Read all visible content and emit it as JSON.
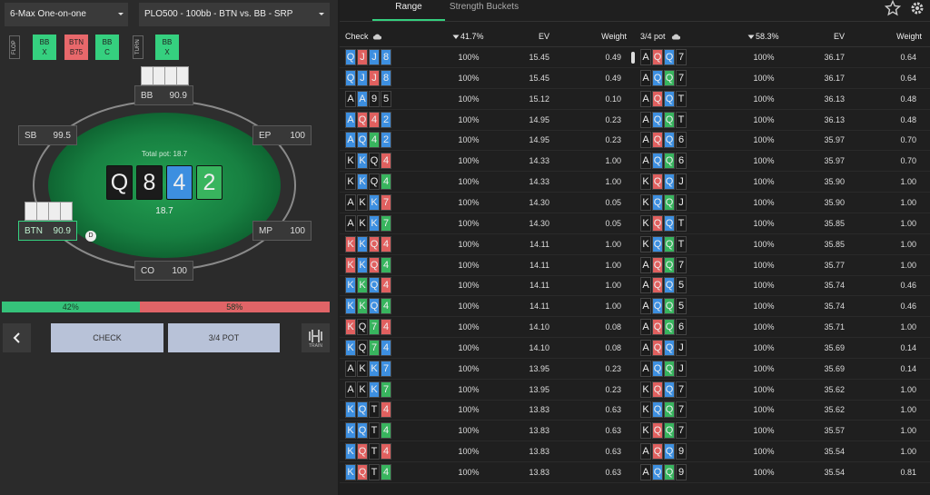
{
  "dropdowns": [
    "6-Max One-on-one",
    "PLO500 - 100bb - BTN vs. BB - SRP"
  ],
  "streets": [
    {
      "label": "FLOP",
      "actions": [
        {
          "player": "BB",
          "action": "X",
          "color": "#35d07f"
        },
        {
          "player": "BTN",
          "action": "B75",
          "color": "#e8686b"
        },
        {
          "player": "BB",
          "action": "C",
          "color": "#35d07f"
        }
      ]
    },
    {
      "label": "TURN",
      "actions": [
        {
          "player": "BB",
          "action": "X",
          "color": "#35d07f"
        }
      ]
    }
  ],
  "seats": [
    {
      "name": "BB",
      "stack": "90.9",
      "in_hand": true,
      "active": false
    },
    {
      "name": "SB",
      "stack": "99.5",
      "in_hand": false,
      "active": false
    },
    {
      "name": "EP",
      "stack": "100",
      "in_hand": false,
      "active": false
    },
    {
      "name": "BTN",
      "stack": "90.9",
      "in_hand": true,
      "active": true
    },
    {
      "name": "MP",
      "stack": "100",
      "in_hand": false,
      "active": false
    },
    {
      "name": "CO",
      "stack": "100",
      "in_hand": false,
      "active": false
    }
  ],
  "total_pot": "Total pot: 18.7",
  "pot": "18.7",
  "dealer": "D",
  "board": {
    "ranks": [
      "Q",
      "8",
      "4",
      "2"
    ],
    "suits": "ssdc"
  },
  "equity": [
    {
      "value": 42,
      "label": "42%",
      "color": "#35c27a"
    },
    {
      "value": 58,
      "label": "58%",
      "color": "#e06467"
    }
  ],
  "buttons": {
    "check": "CHECK",
    "bet": "3/4 POT",
    "train": "TRAIN"
  },
  "tabs": [
    "Range",
    "Strength Buckets"
  ],
  "suit_colors": {
    "s": "#1b1b1b",
    "h": "#e0605f",
    "d": "#3d8fe0",
    "c": "#38b45e"
  },
  "tables": [
    {
      "action": "Check",
      "frequency": "41.7%",
      "ev_header": "EV",
      "weight_header": "Weight",
      "rows": [
        {
          "cards": [
            "Q",
            "J",
            "J",
            "8"
          ],
          "suits": "dhdd",
          "freq": "100%",
          "ev": "15.45",
          "weight": "0.49"
        },
        {
          "cards": [
            "Q",
            "J",
            "J",
            "8"
          ],
          "suits": "ddhd",
          "freq": "100%",
          "ev": "15.45",
          "weight": "0.49"
        },
        {
          "cards": [
            "A",
            "A",
            "9",
            "5"
          ],
          "suits": "sdss",
          "freq": "100%",
          "ev": "15.12",
          "weight": "0.10"
        },
        {
          "cards": [
            "A",
            "Q",
            "4",
            "2"
          ],
          "suits": "dhhd",
          "freq": "100%",
          "ev": "14.95",
          "weight": "0.23"
        },
        {
          "cards": [
            "A",
            "Q",
            "4",
            "2"
          ],
          "suits": "ddcd",
          "freq": "100%",
          "ev": "14.95",
          "weight": "0.23"
        },
        {
          "cards": [
            "K",
            "K",
            "Q",
            "4"
          ],
          "suits": "sdsh",
          "freq": "100%",
          "ev": "14.33",
          "weight": "1.00"
        },
        {
          "cards": [
            "K",
            "K",
            "Q",
            "4"
          ],
          "suits": "sdsc",
          "freq": "100%",
          "ev": "14.33",
          "weight": "1.00"
        },
        {
          "cards": [
            "A",
            "K",
            "K",
            "7"
          ],
          "suits": "ssdh",
          "freq": "100%",
          "ev": "14.30",
          "weight": "0.05"
        },
        {
          "cards": [
            "A",
            "K",
            "K",
            "7"
          ],
          "suits": "ssdc",
          "freq": "100%",
          "ev": "14.30",
          "weight": "0.05"
        },
        {
          "cards": [
            "K",
            "K",
            "Q",
            "4"
          ],
          "suits": "hdhh",
          "freq": "100%",
          "ev": "14.11",
          "weight": "1.00"
        },
        {
          "cards": [
            "K",
            "K",
            "Q",
            "4"
          ],
          "suits": "hdhc",
          "freq": "100%",
          "ev": "14.11",
          "weight": "1.00"
        },
        {
          "cards": [
            "K",
            "K",
            "Q",
            "4"
          ],
          "suits": "dcdh",
          "freq": "100%",
          "ev": "14.11",
          "weight": "1.00"
        },
        {
          "cards": [
            "K",
            "K",
            "Q",
            "4"
          ],
          "suits": "dcdc",
          "freq": "100%",
          "ev": "14.11",
          "weight": "1.00"
        },
        {
          "cards": [
            "K",
            "Q",
            "7",
            "4"
          ],
          "suits": "hsch",
          "freq": "100%",
          "ev": "14.10",
          "weight": "0.08"
        },
        {
          "cards": [
            "K",
            "Q",
            "7",
            "4"
          ],
          "suits": "dscd",
          "freq": "100%",
          "ev": "14.10",
          "weight": "0.08"
        },
        {
          "cards": [
            "A",
            "K",
            "K",
            "7"
          ],
          "suits": "ssdd",
          "freq": "100%",
          "ev": "13.95",
          "weight": "0.23"
        },
        {
          "cards": [
            "A",
            "K",
            "K",
            "7"
          ],
          "suits": "ssdc",
          "freq": "100%",
          "ev": "13.95",
          "weight": "0.23"
        },
        {
          "cards": [
            "K",
            "Q",
            "T",
            "4"
          ],
          "suits": "ddsh",
          "freq": "100%",
          "ev": "13.83",
          "weight": "0.63"
        },
        {
          "cards": [
            "K",
            "Q",
            "T",
            "4"
          ],
          "suits": "ddsc",
          "freq": "100%",
          "ev": "13.83",
          "weight": "0.63"
        },
        {
          "cards": [
            "K",
            "Q",
            "T",
            "4"
          ],
          "suits": "dhsh",
          "freq": "100%",
          "ev": "13.83",
          "weight": "0.63"
        },
        {
          "cards": [
            "K",
            "Q",
            "T",
            "4"
          ],
          "suits": "dhsc",
          "freq": "100%",
          "ev": "13.83",
          "weight": "0.63"
        }
      ]
    },
    {
      "action": "3/4 pot",
      "frequency": "58.3%",
      "ev_header": "EV",
      "weight_header": "Weight",
      "rows": [
        {
          "cards": [
            "A",
            "Q",
            "Q",
            "7"
          ],
          "suits": "shds",
          "freq": "100%",
          "ev": "36.17",
          "weight": "0.64"
        },
        {
          "cards": [
            "A",
            "Q",
            "Q",
            "7"
          ],
          "suits": "sdcs",
          "freq": "100%",
          "ev": "36.17",
          "weight": "0.64"
        },
        {
          "cards": [
            "A",
            "Q",
            "Q",
            "T"
          ],
          "suits": "shds",
          "freq": "100%",
          "ev": "36.13",
          "weight": "0.48"
        },
        {
          "cards": [
            "A",
            "Q",
            "Q",
            "T"
          ],
          "suits": "sdcs",
          "freq": "100%",
          "ev": "36.13",
          "weight": "0.48"
        },
        {
          "cards": [
            "A",
            "Q",
            "Q",
            "6"
          ],
          "suits": "shds",
          "freq": "100%",
          "ev": "35.97",
          "weight": "0.70"
        },
        {
          "cards": [
            "A",
            "Q",
            "Q",
            "6"
          ],
          "suits": "sdcs",
          "freq": "100%",
          "ev": "35.97",
          "weight": "0.70"
        },
        {
          "cards": [
            "K",
            "Q",
            "Q",
            "J"
          ],
          "suits": "shds",
          "freq": "100%",
          "ev": "35.90",
          "weight": "1.00"
        },
        {
          "cards": [
            "K",
            "Q",
            "Q",
            "J"
          ],
          "suits": "sdcs",
          "freq": "100%",
          "ev": "35.90",
          "weight": "1.00"
        },
        {
          "cards": [
            "K",
            "Q",
            "Q",
            "T"
          ],
          "suits": "shds",
          "freq": "100%",
          "ev": "35.85",
          "weight": "1.00"
        },
        {
          "cards": [
            "K",
            "Q",
            "Q",
            "T"
          ],
          "suits": "sdcs",
          "freq": "100%",
          "ev": "35.85",
          "weight": "1.00"
        },
        {
          "cards": [
            "A",
            "Q",
            "Q",
            "7"
          ],
          "suits": "shcs",
          "freq": "100%",
          "ev": "35.77",
          "weight": "1.00"
        },
        {
          "cards": [
            "A",
            "Q",
            "Q",
            "5"
          ],
          "suits": "shds",
          "freq": "100%",
          "ev": "35.74",
          "weight": "0.46"
        },
        {
          "cards": [
            "A",
            "Q",
            "Q",
            "5"
          ],
          "suits": "sdcs",
          "freq": "100%",
          "ev": "35.74",
          "weight": "0.46"
        },
        {
          "cards": [
            "A",
            "Q",
            "Q",
            "6"
          ],
          "suits": "shcs",
          "freq": "100%",
          "ev": "35.71",
          "weight": "1.00"
        },
        {
          "cards": [
            "A",
            "Q",
            "Q",
            "J"
          ],
          "suits": "shds",
          "freq": "100%",
          "ev": "35.69",
          "weight": "0.14"
        },
        {
          "cards": [
            "A",
            "Q",
            "Q",
            "J"
          ],
          "suits": "sdcs",
          "freq": "100%",
          "ev": "35.69",
          "weight": "0.14"
        },
        {
          "cards": [
            "K",
            "Q",
            "Q",
            "7"
          ],
          "suits": "shds",
          "freq": "100%",
          "ev": "35.62",
          "weight": "1.00"
        },
        {
          "cards": [
            "K",
            "Q",
            "Q",
            "7"
          ],
          "suits": "sdcs",
          "freq": "100%",
          "ev": "35.62",
          "weight": "1.00"
        },
        {
          "cards": [
            "K",
            "Q",
            "Q",
            "7"
          ],
          "suits": "shcs",
          "freq": "100%",
          "ev": "35.57",
          "weight": "1.00"
        },
        {
          "cards": [
            "A",
            "Q",
            "Q",
            "9"
          ],
          "suits": "shds",
          "freq": "100%",
          "ev": "35.54",
          "weight": "1.00"
        },
        {
          "cards": [
            "A",
            "Q",
            "Q",
            "9"
          ],
          "suits": "sdcs",
          "freq": "100%",
          "ev": "35.54",
          "weight": "0.81"
        }
      ]
    }
  ]
}
